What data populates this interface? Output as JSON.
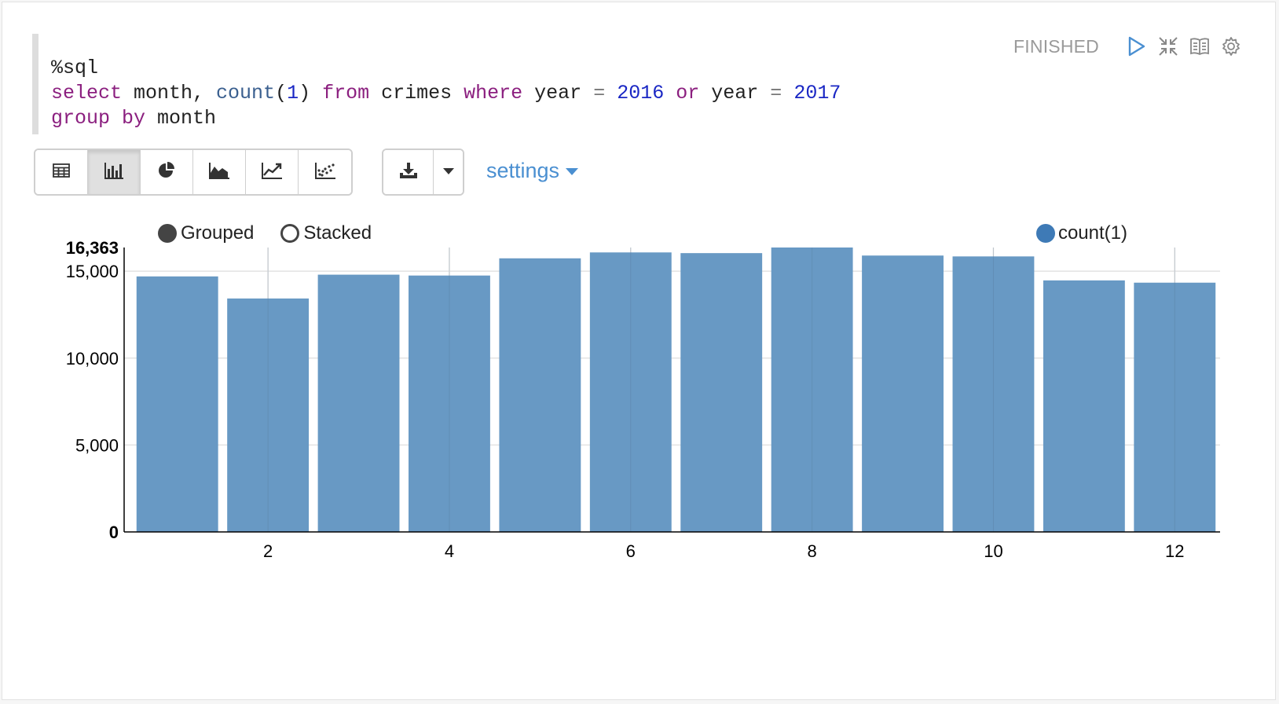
{
  "status": {
    "text": "FINISHED"
  },
  "controls": {
    "icons": [
      "run-icon",
      "collapse-icon",
      "book-icon",
      "gear-icon"
    ]
  },
  "code": {
    "line1": "%sql",
    "line2": {
      "kw_select": "select",
      "t1": " month, ",
      "fn_count": "count",
      "p1": "(",
      "num1": "1",
      "p2": ") ",
      "kw_from": "from",
      "t2": " crimes ",
      "kw_where": "where",
      "t3": " year ",
      "op1": "=",
      "sp1": " ",
      "num2016": "2016",
      "sp2": " ",
      "kw_or": "or",
      "t4": " year ",
      "op2": "=",
      "sp3": " ",
      "num2017": "2017"
    },
    "line3": {
      "kw_group": "group",
      "sp": " ",
      "kw_by": "by",
      "t": " month"
    }
  },
  "toolbar": {
    "buttons": [
      "table-icon",
      "bar-chart-icon",
      "pie-chart-icon",
      "area-chart-icon",
      "line-chart-icon",
      "scatter-chart-icon"
    ],
    "active": "bar-chart-icon",
    "download_icon": "download-icon",
    "settings_label": "settings"
  },
  "chart_options": {
    "grouped_label": "Grouped",
    "stacked_label": "Stacked",
    "selected": "Grouped"
  },
  "colors": {
    "bar": "#6899c4",
    "accent": "#4a8fd1",
    "legend": "#3e7ab6"
  },
  "chart_data": {
    "type": "bar",
    "x": [
      1,
      2,
      3,
      4,
      5,
      6,
      7,
      8,
      9,
      10,
      11,
      12
    ],
    "series": [
      {
        "name": "count(1)",
        "values": [
          14700,
          13430,
          14800,
          14750,
          15740,
          16080,
          16040,
          16363,
          15900,
          15850,
          14470,
          14340
        ]
      }
    ],
    "ylim": [
      0,
      16363
    ],
    "yticks": [
      0,
      5000,
      10000,
      15000,
      16363
    ],
    "ytick_labels": [
      "0",
      "5,000",
      "10,000",
      "15,000",
      "16,363"
    ],
    "xticks": [
      2,
      4,
      6,
      8,
      10,
      12
    ],
    "xtick_labels": [
      "2",
      "4",
      "6",
      "8",
      "10",
      "12"
    ],
    "grid": true,
    "legend": "top-right"
  }
}
